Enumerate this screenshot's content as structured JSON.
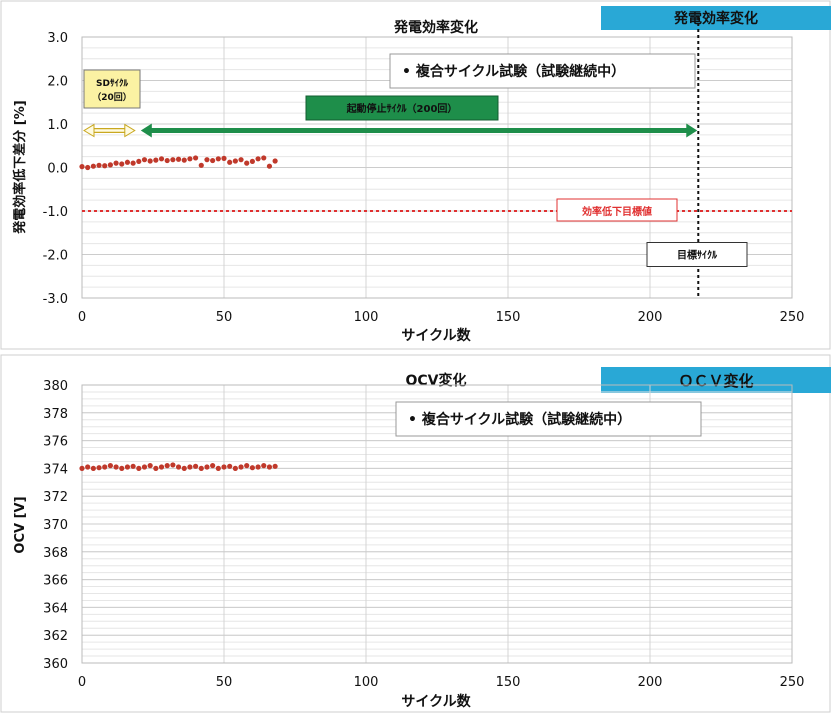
{
  "colors": {
    "series": "#c0392b",
    "arrow_green": "#1e8e4a",
    "badge_blue": "#29a8d6",
    "label_yellow": "#fbf2a3",
    "threshold_red": "#e03030"
  },
  "chart_data": [
    {
      "type": "scatter",
      "title": "発電効率変化",
      "badge": "発電効率変化",
      "xlabel": "サイクル数",
      "ylabel": "発電効率低下差分 [%]",
      "xlim": [
        0,
        250
      ],
      "ylim": [
        -3.0,
        3.0
      ],
      "xticks": [
        "0",
        "50",
        "100",
        "150",
        "200",
        "250"
      ],
      "yticks": [
        "3.0",
        "2.0",
        "1.0",
        "0.0",
        "-1.0",
        "-2.0",
        "-3.0"
      ],
      "grid": true,
      "legend": "• 複合サイクル試験（試験継続中）",
      "series": [
        {
          "name": "複合サイクル試験（試験継続中）",
          "x": [
            0,
            2,
            4,
            6,
            8,
            10,
            12,
            14,
            16,
            18,
            20,
            22,
            24,
            26,
            28,
            30,
            32,
            34,
            36,
            38,
            40,
            42,
            44,
            46,
            48,
            50,
            52,
            54,
            56,
            58,
            60,
            62,
            64,
            66,
            68
          ],
          "y": [
            0.02,
            0.0,
            0.03,
            0.05,
            0.04,
            0.06,
            0.1,
            0.08,
            0.12,
            0.1,
            0.14,
            0.18,
            0.15,
            0.17,
            0.2,
            0.16,
            0.18,
            0.19,
            0.17,
            0.2,
            0.22,
            0.05,
            0.18,
            0.16,
            0.2,
            0.21,
            0.12,
            0.15,
            0.18,
            0.1,
            0.14,
            0.2,
            0.22,
            0.03,
            0.15
          ]
        }
      ],
      "annotations": {
        "sd_cycle": "SDｻｲｸﾙ\n（20回）",
        "start_stop": "起動停止ｻｲｸﾙ（200回）",
        "threshold_label": "効率低下目標値",
        "threshold_value": -1.0,
        "target_label": "目標ｻｲｸﾙ",
        "target_cycle": 217,
        "sd_range": [
          0,
          20
        ],
        "start_stop_range": [
          20,
          217
        ],
        "arrow_level": 0.85
      }
    },
    {
      "type": "scatter",
      "title": "OCV変化",
      "badge": "ＯＣＶ変化",
      "xlabel": "サイクル数",
      "ylabel": "OCV [V]",
      "xlim": [
        0,
        250
      ],
      "ylim": [
        360,
        380
      ],
      "xticks": [
        "0",
        "50",
        "100",
        "150",
        "200",
        "250"
      ],
      "yticks": [
        "380",
        "378",
        "376",
        "374",
        "372",
        "370",
        "368",
        "366",
        "364",
        "362",
        "360"
      ],
      "grid": true,
      "legend": "• 複合サイクル試験（試験継続中）",
      "series": [
        {
          "name": "複合サイクル試験（試験継続中）",
          "x": [
            0,
            2,
            4,
            6,
            8,
            10,
            12,
            14,
            16,
            18,
            20,
            22,
            24,
            26,
            28,
            30,
            32,
            34,
            36,
            38,
            40,
            42,
            44,
            46,
            48,
            50,
            52,
            54,
            56,
            58,
            60,
            62,
            64,
            66,
            68
          ],
          "y": [
            374.0,
            374.1,
            374.0,
            374.05,
            374.1,
            374.2,
            374.1,
            374.0,
            374.1,
            374.15,
            374.0,
            374.1,
            374.2,
            374.0,
            374.1,
            374.2,
            374.25,
            374.1,
            374.0,
            374.1,
            374.15,
            374.0,
            374.1,
            374.2,
            374.0,
            374.1,
            374.15,
            374.0,
            374.1,
            374.2,
            374.05,
            374.1,
            374.2,
            374.1,
            374.15
          ]
        }
      ]
    }
  ]
}
